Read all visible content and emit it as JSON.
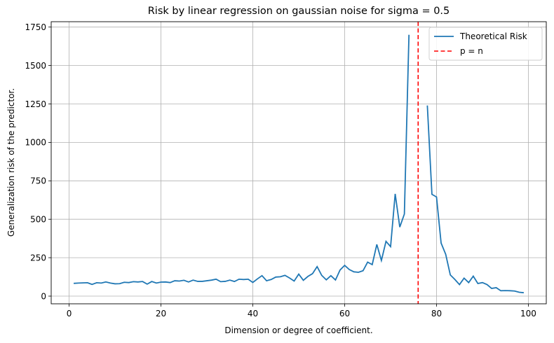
{
  "chart_data": {
    "type": "line",
    "title": "Risk by linear regression on gaussian noise for sigma = 0.5",
    "xlabel": "Dimension or degree of coefficient.",
    "ylabel": "Generalization risk of the predictor.",
    "xlim": [
      -3.9,
      103.9
    ],
    "ylim": [
      -50,
      1785
    ],
    "x_ticks": [
      0,
      20,
      40,
      60,
      80,
      100
    ],
    "y_ticks": [
      0,
      250,
      500,
      750,
      1000,
      1250,
      1500,
      1750
    ],
    "grid": true,
    "legend_position": "top-right",
    "series": [
      {
        "name": "Theoretical Risk",
        "color": "#1f77b4",
        "style": "solid",
        "x": [
          1,
          2,
          3,
          4,
          5,
          6,
          7,
          8,
          9,
          10,
          11,
          12,
          13,
          14,
          15,
          16,
          17,
          18,
          19,
          20,
          21,
          22,
          23,
          24,
          25,
          26,
          27,
          28,
          29,
          30,
          31,
          32,
          33,
          34,
          35,
          36,
          37,
          38,
          39,
          40,
          41,
          42,
          43,
          44,
          45,
          46,
          47,
          48,
          49,
          50,
          51,
          52,
          53,
          54,
          55,
          56,
          57,
          58,
          59,
          60,
          61,
          62,
          63,
          64,
          65,
          66,
          67,
          68,
          69,
          70,
          71,
          72,
          73,
          74,
          75,
          76,
          77,
          78,
          79,
          80,
          81,
          82,
          83,
          84,
          85,
          86,
          87,
          88,
          89,
          90,
          91,
          92,
          93,
          94,
          95,
          96,
          97,
          98,
          99
        ],
        "y": [
          83,
          85,
          86,
          87,
          76,
          87,
          85,
          92,
          85,
          80,
          81,
          90,
          88,
          94,
          92,
          95,
          78,
          95,
          85,
          91,
          92,
          88,
          100,
          98,
          103,
          92,
          104,
          96,
          96,
          100,
          104,
          110,
          94,
          96,
          104,
          95,
          110,
          108,
          110,
          89,
          112,
          133,
          100,
          108,
          124,
          126,
          135,
          118,
          98,
          143,
          103,
          128,
          146,
          192,
          135,
          106,
          133,
          105,
          170,
          200,
          173,
          158,
          155,
          165,
          221,
          205,
          336,
          232,
          356,
          322,
          665,
          449,
          534,
          1700,
          null,
          null,
          null,
          1240,
          662,
          645,
          345,
          272,
          138,
          108,
          75,
          117,
          88,
          130,
          82,
          88,
          75,
          50,
          55,
          35,
          36,
          35,
          33,
          25,
          22
        ]
      },
      {
        "name": "p = n",
        "color": "#ff0000",
        "style": "dashed",
        "vline_x": 76
      }
    ]
  }
}
